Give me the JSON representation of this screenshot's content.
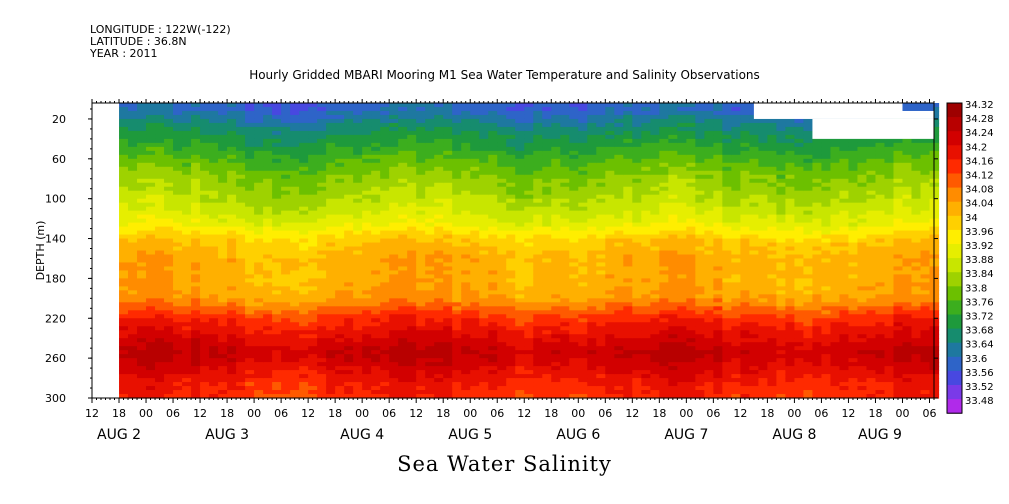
{
  "header": {
    "longitude": "LONGITUDE : 122W(-122)",
    "latitude": "LATITUDE : 36.8N",
    "year": "YEAR : 2011",
    "title": "Hourly Gridded MBARI Mooring M1 Sea Water Temperature and Salinity Observations"
  },
  "chart_data": {
    "type": "heatmap",
    "title": "Hourly Gridded MBARI Mooring M1 Sea Water Temperature and Salinity Observations",
    "xlabel": "Sea Water Salinity",
    "ylabel": "DEPTH (m)",
    "x_unit": "hours since 2011-08-01 12:00",
    "xlim": [
      0,
      187
    ],
    "x_data_start": 6,
    "ylim": [
      300,
      4
    ],
    "y_reversed": true,
    "y_ticks": [
      20,
      60,
      100,
      140,
      180,
      220,
      260,
      300
    ],
    "x_hour_ticks": [
      {
        "h": 0,
        "label": "12"
      },
      {
        "h": 6,
        "label": "18"
      },
      {
        "h": 12,
        "label": "00"
      },
      {
        "h": 18,
        "label": "06"
      },
      {
        "h": 24,
        "label": "12"
      },
      {
        "h": 30,
        "label": "18"
      },
      {
        "h": 36,
        "label": "00"
      },
      {
        "h": 42,
        "label": "06"
      },
      {
        "h": 48,
        "label": "12"
      },
      {
        "h": 54,
        "label": "18"
      },
      {
        "h": 60,
        "label": "00"
      },
      {
        "h": 66,
        "label": "06"
      },
      {
        "h": 72,
        "label": "12"
      },
      {
        "h": 78,
        "label": "18"
      },
      {
        "h": 84,
        "label": "00"
      },
      {
        "h": 90,
        "label": "06"
      },
      {
        "h": 96,
        "label": "12"
      },
      {
        "h": 102,
        "label": "18"
      },
      {
        "h": 108,
        "label": "00"
      },
      {
        "h": 114,
        "label": "06"
      },
      {
        "h": 120,
        "label": "12"
      },
      {
        "h": 126,
        "label": "18"
      },
      {
        "h": 132,
        "label": "00"
      },
      {
        "h": 138,
        "label": "06"
      },
      {
        "h": 144,
        "label": "12"
      },
      {
        "h": 150,
        "label": "18"
      },
      {
        "h": 156,
        "label": "00"
      },
      {
        "h": 162,
        "label": "06"
      },
      {
        "h": 168,
        "label": "12"
      },
      {
        "h": 174,
        "label": "18"
      },
      {
        "h": 180,
        "label": "00"
      },
      {
        "h": 186,
        "label": "06"
      }
    ],
    "x_date_labels": [
      {
        "h": 6,
        "label": "AUG  2"
      },
      {
        "h": 30,
        "label": "AUG  3"
      },
      {
        "h": 60,
        "label": "AUG  4"
      },
      {
        "h": 84,
        "label": "AUG  5"
      },
      {
        "h": 108,
        "label": "AUG  6"
      },
      {
        "h": 132,
        "label": "AUG  7"
      },
      {
        "h": 156,
        "label": "AUG  8"
      },
      {
        "h": 175,
        "label": "AUG  9"
      }
    ],
    "colorbar": {
      "levels": [
        "34.32",
        "34.28",
        "34.24",
        "34.2",
        "34.16",
        "34.12",
        "34.08",
        "34.04",
        "34",
        "33.96",
        "33.92",
        "33.88",
        "33.84",
        "33.8",
        "33.76",
        "33.72",
        "33.68",
        "33.64",
        "33.6",
        "33.56",
        "33.52",
        "33.48"
      ],
      "colors": [
        "#9e0000",
        "#b80000",
        "#d20000",
        "#e81000",
        "#ff2a00",
        "#ff5a00",
        "#ff8c00",
        "#ffb000",
        "#ffd000",
        "#ffee00",
        "#e6ee00",
        "#c8e600",
        "#9ed200",
        "#6cc000",
        "#3cae1e",
        "#1e9a3c",
        "#168c6e",
        "#1e78a0",
        "#2e64c8",
        "#4848e0",
        "#7a3ae8",
        "#b02aea"
      ],
      "bottom_color": "#d020f0"
    },
    "profile": [
      {
        "depth": 10,
        "salinity": 33.62
      },
      {
        "depth": 30,
        "salinity": 33.7
      },
      {
        "depth": 50,
        "salinity": 33.76
      },
      {
        "depth": 70,
        "salinity": 33.82
      },
      {
        "depth": 90,
        "salinity": 33.86
      },
      {
        "depth": 110,
        "salinity": 33.9
      },
      {
        "depth": 125,
        "salinity": 33.94
      },
      {
        "depth": 140,
        "salinity": 34.02
      },
      {
        "depth": 160,
        "salinity": 34.06
      },
      {
        "depth": 180,
        "salinity": 34.06
      },
      {
        "depth": 200,
        "salinity": 34.08
      },
      {
        "depth": 220,
        "salinity": 34.18
      },
      {
        "depth": 240,
        "salinity": 34.24
      },
      {
        "depth": 255,
        "salinity": 34.28
      },
      {
        "depth": 270,
        "salinity": 34.24
      },
      {
        "depth": 285,
        "salinity": 34.2
      },
      {
        "depth": 300,
        "salinity": 34.18
      }
    ],
    "missing_regions": [
      {
        "h0": 0,
        "h1": 6,
        "d0": 4,
        "d1": 300
      },
      {
        "h0": 147,
        "h1": 187,
        "d0": 4,
        "d1": 20
      },
      {
        "h0": 160,
        "h1": 187,
        "d0": 20,
        "d1": 40
      },
      {
        "h0": 180,
        "h1": 187,
        "d0": 4,
        "d1": 12
      }
    ]
  }
}
